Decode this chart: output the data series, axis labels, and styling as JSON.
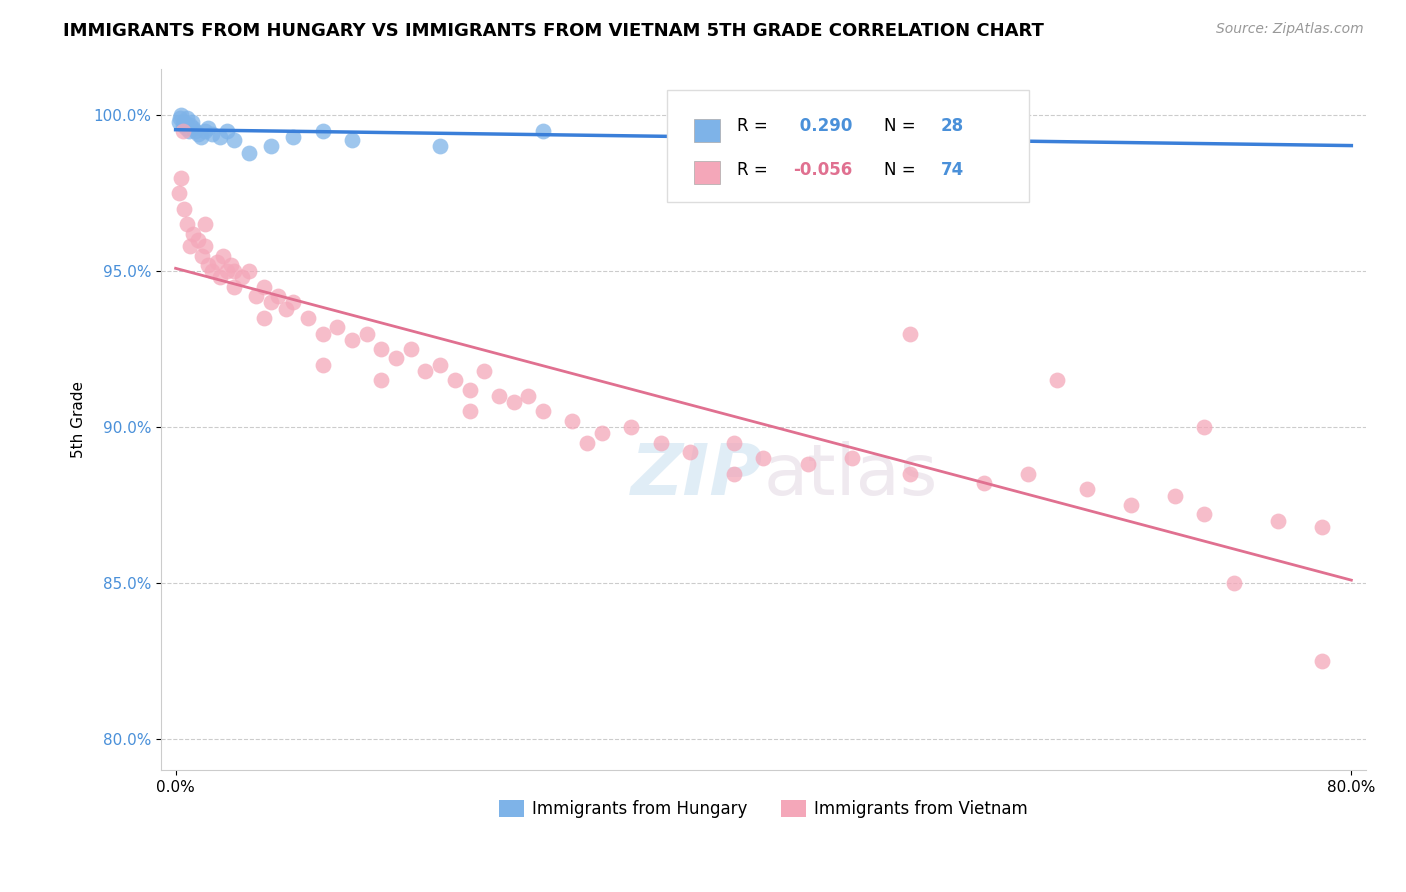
{
  "title": "IMMIGRANTS FROM HUNGARY VS IMMIGRANTS FROM VIETNAM 5TH GRADE CORRELATION CHART",
  "source": "Source: ZipAtlas.com",
  "ylabel": "5th Grade",
  "R_hungary": 0.29,
  "N_hungary": 28,
  "R_vietnam": -0.056,
  "N_vietnam": 74,
  "color_hungary": "#7EB3E8",
  "color_vietnam": "#F4A7B9",
  "line_color_hungary": "#3A7FD9",
  "line_color_vietnam": "#E07090",
  "legend_hungary": "Immigrants from Hungary",
  "legend_vietnam": "Immigrants from Vietnam",
  "watermark_zip": "ZIP",
  "watermark_atlas": "atlas",
  "hungary_x": [
    0.2,
    0.3,
    0.4,
    0.5,
    0.6,
    0.7,
    0.8,
    0.9,
    1.0,
    1.1,
    1.2,
    1.3,
    1.5,
    1.7,
    2.0,
    2.2,
    2.5,
    3.0,
    3.5,
    4.0,
    5.0,
    6.5,
    8.0,
    10.0,
    12.0,
    18.0,
    25.0,
    35.0
  ],
  "hungary_y": [
    99.8,
    99.9,
    100.0,
    99.7,
    99.8,
    99.6,
    99.9,
    99.5,
    99.7,
    99.8,
    99.6,
    99.5,
    99.4,
    99.3,
    99.5,
    99.6,
    99.4,
    99.3,
    99.5,
    99.2,
    98.8,
    99.0,
    99.3,
    99.5,
    99.2,
    99.0,
    99.5,
    99.8
  ],
  "vietnam_x": [
    0.2,
    0.4,
    0.5,
    0.6,
    0.8,
    1.0,
    1.2,
    1.5,
    1.8,
    2.0,
    2.2,
    2.5,
    2.8,
    3.0,
    3.2,
    3.5,
    3.8,
    4.0,
    4.5,
    5.0,
    5.5,
    6.0,
    6.5,
    7.0,
    7.5,
    8.0,
    9.0,
    10.0,
    11.0,
    12.0,
    13.0,
    14.0,
    15.0,
    16.0,
    17.0,
    18.0,
    19.0,
    20.0,
    21.0,
    22.0,
    23.0,
    24.0,
    25.0,
    27.0,
    29.0,
    31.0,
    33.0,
    35.0,
    38.0,
    40.0,
    43.0,
    46.0,
    50.0,
    55.0,
    58.0,
    62.0,
    65.0,
    68.0,
    70.0,
    75.0,
    78.0,
    2.0,
    4.0,
    6.0,
    10.0,
    14.0,
    20.0,
    28.0,
    38.0,
    50.0,
    60.0,
    70.0,
    72.0,
    78.0
  ],
  "vietnam_y": [
    97.5,
    98.0,
    99.5,
    97.0,
    96.5,
    95.8,
    96.2,
    96.0,
    95.5,
    95.8,
    95.2,
    95.0,
    95.3,
    94.8,
    95.5,
    95.0,
    95.2,
    94.5,
    94.8,
    95.0,
    94.2,
    94.5,
    94.0,
    94.2,
    93.8,
    94.0,
    93.5,
    93.0,
    93.2,
    92.8,
    93.0,
    92.5,
    92.2,
    92.5,
    91.8,
    92.0,
    91.5,
    91.2,
    91.8,
    91.0,
    90.8,
    91.0,
    90.5,
    90.2,
    89.8,
    90.0,
    89.5,
    89.2,
    89.5,
    89.0,
    88.8,
    89.0,
    88.5,
    88.2,
    88.5,
    88.0,
    87.5,
    87.8,
    87.2,
    87.0,
    86.8,
    96.5,
    95.0,
    93.5,
    92.0,
    91.5,
    90.5,
    89.5,
    88.5,
    93.0,
    91.5,
    90.0,
    85.0,
    82.5
  ],
  "ytick_vals": [
    80.0,
    85.0,
    90.0,
    95.0,
    100.0
  ],
  "ytick_labels": [
    "80.0%",
    "85.0%",
    "90.0%",
    "95.0%",
    "100.0%"
  ],
  "ymin": 79.0,
  "ymax": 101.5,
  "xmin": -1.0,
  "xmax": 81.0,
  "title_fontsize": 13,
  "source_fontsize": 10,
  "tick_fontsize": 11,
  "ylabel_fontsize": 11
}
